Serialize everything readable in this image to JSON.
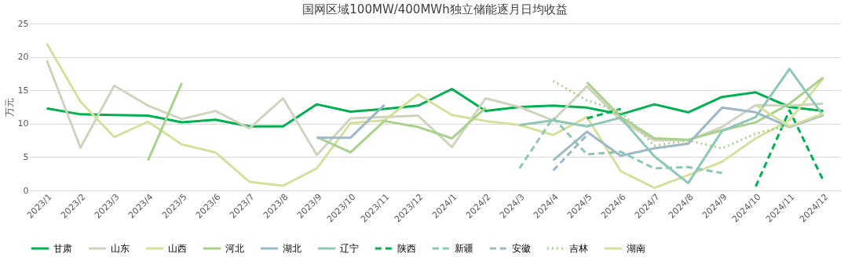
{
  "chart_data": {
    "type": "line",
    "title": "国网区域100MW/400MWh独立储能逐月日均收益",
    "ylabel": "万元",
    "categories": [
      "2023/1",
      "2023/2",
      "2023/3",
      "2023/4",
      "2023/5",
      "2023/6",
      "2023/7",
      "2023/8",
      "2023/9",
      "2023/10",
      "2023/11",
      "2023/12",
      "2024/1",
      "2024/2",
      "2024/3",
      "2024/4",
      "2024/5",
      "2024/6",
      "2024/7",
      "2024/8",
      "2024/9",
      "2024/10",
      "2024/11",
      "2024/12"
    ],
    "ylim": [
      0,
      25
    ],
    "yticks": [
      0,
      5,
      10,
      15,
      20,
      25
    ],
    "grid": "y",
    "legend": "bottom",
    "series": [
      {
        "name": "甘肃",
        "color": "#00b050",
        "line_style": "solid",
        "values": [
          12.3,
          11.4,
          11.3,
          11.2,
          10.2,
          10.6,
          9.6,
          9.6,
          12.9,
          11.8,
          12.2,
          12.7,
          15.2,
          11.9,
          12.5,
          12.7,
          12.4,
          11.4,
          12.9,
          11.7,
          14.0,
          14.7,
          12.5,
          11.9
        ]
      },
      {
        "name": "山东",
        "color": "#d0d3bd",
        "line_style": "solid",
        "values": [
          19.5,
          6.4,
          15.7,
          12.7,
          10.7,
          11.9,
          9.3,
          13.8,
          5.3,
          10.8,
          11.0,
          11.2,
          6.5,
          13.8,
          12.5,
          10.5,
          15.6,
          10.5,
          7.5,
          7.5,
          9.5,
          12.8,
          12.7,
          13.0
        ]
      },
      {
        "name": "山西",
        "color": "#d4e09b",
        "line_style": "solid",
        "values": [
          22.0,
          13.3,
          8.0,
          10.3,
          6.9,
          5.7,
          1.3,
          0.7,
          3.3,
          10.1,
          10.5,
          14.4,
          11.3,
          10.4,
          9.8,
          8.3,
          11.0,
          2.9,
          0.4,
          2.3,
          4.3,
          7.8,
          10.5,
          16.8
        ]
      },
      {
        "name": "河北",
        "color": "#a9d18e",
        "line_style": "solid",
        "values": [
          null,
          null,
          null,
          4.5,
          16.1,
          null,
          null,
          null,
          8.0,
          5.7,
          10.4,
          9.5,
          7.8,
          12.4,
          null,
          null,
          16.2,
          11.0,
          7.8,
          7.6,
          9.0,
          10.2,
          13.0,
          16.9
        ]
      },
      {
        "name": "湖北",
        "color": "#9fb8c6",
        "line_style": "solid",
        "values": [
          null,
          null,
          null,
          null,
          null,
          null,
          null,
          null,
          7.9,
          7.9,
          12.8,
          null,
          null,
          null,
          null,
          4.5,
          8.8,
          5.2,
          6.3,
          7.0,
          12.4,
          11.7,
          9.5,
          11.3
        ]
      },
      {
        "name": "辽宁",
        "color": "#8ec7b8",
        "line_style": "solid",
        "values": [
          null,
          null,
          null,
          null,
          null,
          null,
          null,
          null,
          null,
          null,
          null,
          null,
          null,
          null,
          9.8,
          10.5,
          9.6,
          10.9,
          5.1,
          1.1,
          8.9,
          11.0,
          18.2,
          11.2
        ]
      },
      {
        "name": "陕西",
        "color": "#00b050",
        "line_style": "dashed",
        "values": [
          null,
          null,
          null,
          null,
          null,
          null,
          null,
          null,
          null,
          null,
          null,
          null,
          null,
          null,
          null,
          null,
          10.8,
          12.2,
          null,
          null,
          null,
          0.6,
          12.0,
          1.5
        ]
      },
      {
        "name": "新疆",
        "color": "#8ec7b8",
        "line_style": "dashed",
        "values": [
          null,
          null,
          null,
          null,
          null,
          null,
          null,
          null,
          null,
          null,
          null,
          null,
          null,
          null,
          3.3,
          10.9,
          5.4,
          5.8,
          3.3,
          3.5,
          2.6,
          null,
          null,
          null
        ]
      },
      {
        "name": "安徽",
        "color": "#9fb8c6",
        "line_style": "dashed",
        "values": [
          null,
          null,
          null,
          null,
          null,
          null,
          null,
          null,
          null,
          null,
          null,
          null,
          null,
          null,
          null,
          3.0,
          8.3,
          null,
          null,
          null,
          null,
          null,
          null,
          null
        ]
      },
      {
        "name": "吉林",
        "color": "#a9d18e",
        "line_style": "dotted",
        "values": [
          null,
          null,
          null,
          null,
          null,
          null,
          null,
          null,
          null,
          null,
          null,
          null,
          null,
          null,
          null,
          16.4,
          13.5,
          11.8,
          6.7,
          7.5,
          6.3,
          8.5,
          9.8,
          null
        ]
      },
      {
        "name": "湖南",
        "color": "#d4e09b",
        "line_style": "solid",
        "values": [
          null,
          null,
          null,
          null,
          null,
          null,
          null,
          null,
          null,
          null,
          null,
          null,
          null,
          null,
          null,
          null,
          null,
          null,
          null,
          null,
          null,
          12.8,
          9.6,
          11.5
        ]
      }
    ]
  }
}
